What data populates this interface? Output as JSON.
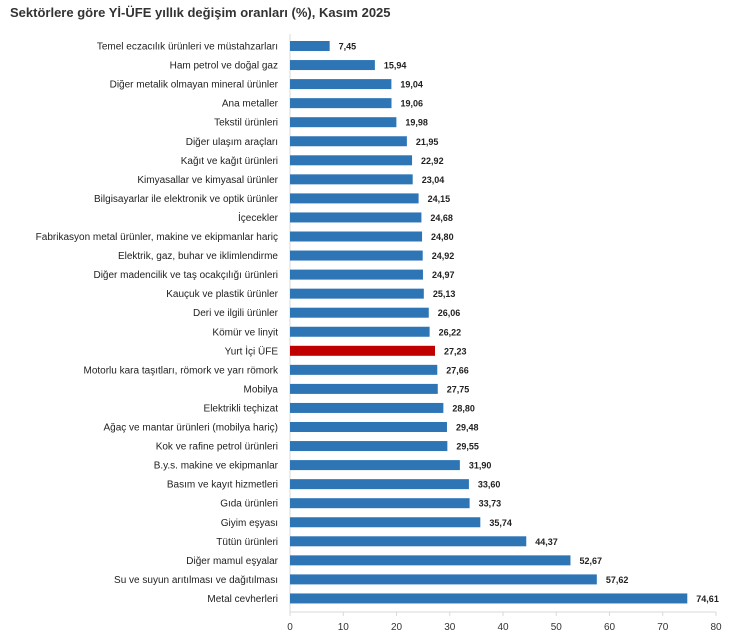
{
  "chart_data": {
    "type": "bar",
    "orientation": "horizontal",
    "title": "Sektörlere göre Yİ-ÜFE yıllık değişim oranları (%), Kasım 2025",
    "categories": [
      "Temel eczacılık ürünleri ve müstahzarları",
      "Ham petrol ve doğal gaz",
      "Diğer metalik olmayan mineral ürünler",
      "Ana metaller",
      "Tekstil ürünleri",
      "Diğer ulaşım araçları",
      "Kağıt ve kağıt ürünleri",
      "Kimyasallar ve kimyasal ürünler",
      "Bilgisayarlar ile elektronik ve optik ürünler",
      "İçecekler",
      "Fabrikasyon metal ürünler, makine ve ekipmanlar hariç",
      "Elektrik, gaz, buhar ve iklimlendirme",
      "Diğer madencilik ve taş ocakçılığı ürünleri",
      "Kauçuk ve plastik ürünler",
      "Deri ve ilgili ürünler",
      "Kömür ve linyit",
      "Yurt İçi ÜFE",
      "Motorlu kara taşıtları, römork ve yarı römork",
      "Mobilya",
      "Elektrikli teçhizat",
      "Ağaç ve mantar ürünleri (mobilya hariç)",
      "Kok ve rafine petrol ürünleri",
      "B.y.s. makine ve ekipmanlar",
      "Basım ve kayıt hizmetleri",
      "Gıda ürünleri",
      "Giyim eşyası",
      "Tütün ürünleri",
      "Diğer mamul eşyalar",
      "Su ve suyun arıtılması ve dağıtılması",
      "Metal cevherleri"
    ],
    "values": [
      7.45,
      15.94,
      19.04,
      19.06,
      19.98,
      21.95,
      22.92,
      23.04,
      24.15,
      24.68,
      24.8,
      24.92,
      24.97,
      25.13,
      26.06,
      26.22,
      27.23,
      27.66,
      27.75,
      28.8,
      29.48,
      29.55,
      31.9,
      33.6,
      33.73,
      35.74,
      44.37,
      52.67,
      57.62,
      74.61
    ],
    "value_labels": [
      "7,45",
      "15,94",
      "19,04",
      "19,06",
      "19,98",
      "21,95",
      "22,92",
      "23,04",
      "24,15",
      "24,68",
      "24,80",
      "24,92",
      "24,97",
      "25,13",
      "26,06",
      "26,22",
      "27,23",
      "27,66",
      "27,75",
      "28,80",
      "29,48",
      "29,55",
      "31,90",
      "33,60",
      "33,73",
      "35,74",
      "44,37",
      "52,67",
      "57,62",
      "74,61"
    ],
    "highlight_category": "Yurt İçi ÜFE",
    "xlim": [
      0,
      80
    ],
    "xticks": [
      0,
      10,
      20,
      30,
      40,
      50,
      60,
      70,
      80
    ],
    "xlabel": "",
    "ylabel": "",
    "grid": false,
    "legend": "none",
    "colors": {
      "bar": "#2e75b6",
      "highlight": "#c00000",
      "axis": "#d9d9d9"
    }
  }
}
